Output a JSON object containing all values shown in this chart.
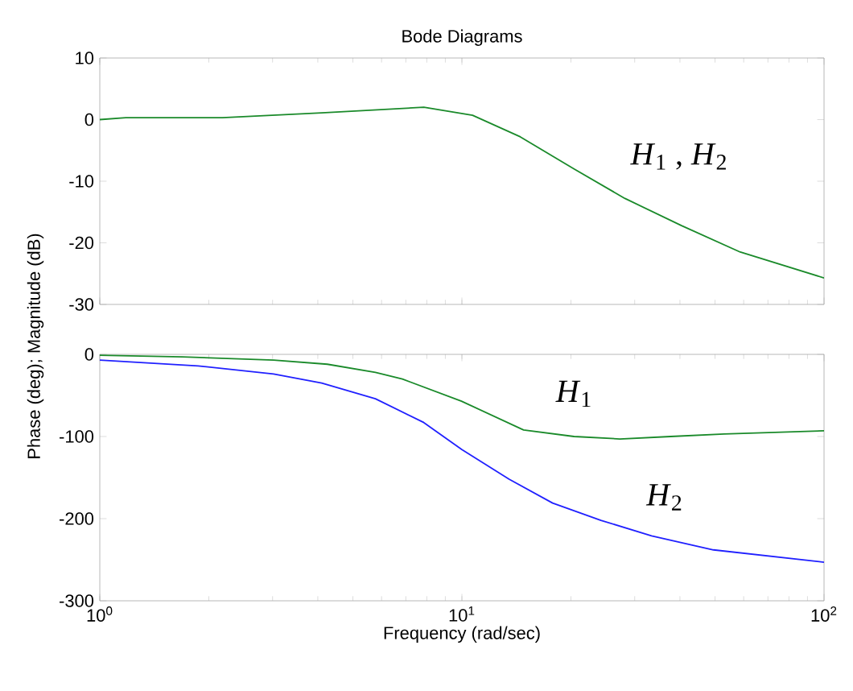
{
  "chart_data": [
    {
      "type": "line",
      "title": "Bode Diagrams",
      "ylabel": "Phase (deg); Magnitude (dB)",
      "log": "x",
      "xlim": [
        1,
        100
      ],
      "xticks": [
        {
          "value": 1,
          "label": null
        },
        {
          "value": 10,
          "label": null
        },
        {
          "value": 100,
          "label": null
        }
      ],
      "ylim": [
        -30,
        10
      ],
      "yticks": [
        -30,
        -20,
        -10,
        0,
        10
      ],
      "tick_labels": "y",
      "grid": false,
      "annotations": [
        "*H*$_{1}$  , *H*$_{2}$"
      ],
      "series": [
        {
          "color": "#1a8a2a",
          "x": [
            1,
            1.18,
            2.18,
            4.1,
            7.85,
            10.7,
            14.5,
            20.4,
            28.2,
            40.4,
            58.7,
            100
          ],
          "values": [
            0,
            0.3,
            0.3,
            1.1,
            2.0,
            0.7,
            -2.8,
            -8.0,
            -12.8,
            -17.2,
            -21.5,
            -25.7
          ]
        }
      ]
    },
    {
      "type": "line",
      "xlabel": "Frequency (rad/sec)",
      "log": "x",
      "xlim": [
        1,
        100
      ],
      "xticks": [
        {
          "value": 1,
          "label": "10$^{0}$"
        },
        {
          "value": 10,
          "label": "10$^{1}$"
        },
        {
          "value": 100,
          "label": "10$^{2}$"
        }
      ],
      "ylim": [
        -300,
        0
      ],
      "yticks": [
        -300,
        -200,
        -100,
        0
      ],
      "grid": false,
      "annotations": [
        "*H*$_{1}$",
        "*H*$_{2}$"
      ],
      "series": [
        {
          "color": "#1a8a2a",
          "x": [
            1,
            1.69,
            3.02,
            4.25,
            5.77,
            6.85,
            9.97,
            14.8,
            20.4,
            27.3,
            37.7,
            53,
            100
          ],
          "values": [
            -1,
            -3,
            -7,
            -12,
            -22,
            -30,
            -57,
            -92,
            -100,
            -103,
            -100,
            -97,
            -93
          ]
        },
        {
          "color": "#2020ff",
          "x": [
            1,
            1.87,
            3.02,
            4.1,
            5.77,
            7.85,
            10,
            13.5,
            17.8,
            24.2,
            33.4,
            49.5,
            100
          ],
          "values": [
            -7,
            -14,
            -24,
            -35,
            -54,
            -83,
            -116,
            -152,
            -181,
            -202,
            -221,
            -238,
            -253
          ]
        }
      ]
    }
  ]
}
